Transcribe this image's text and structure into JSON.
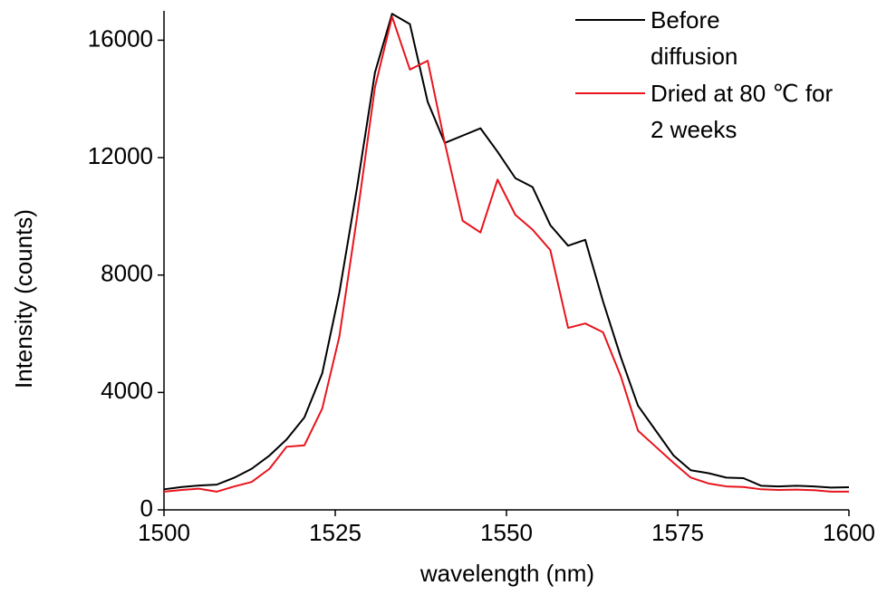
{
  "chart_data": {
    "type": "line",
    "xlabel": "wavelength (nm)",
    "ylabel": "Intensity (counts)",
    "x": [
      1500,
      1502.6,
      1505.1,
      1507.7,
      1510.3,
      1512.8,
      1515.4,
      1517.9,
      1520.5,
      1523.1,
      1525.6,
      1528.2,
      1530.8,
      1533.3,
      1535.9,
      1538.5,
      1541,
      1543.6,
      1546.2,
      1548.7,
      1551.3,
      1553.8,
      1556.4,
      1559,
      1561.5,
      1564.1,
      1566.7,
      1569.2,
      1571.8,
      1574.4,
      1576.9,
      1579.5,
      1582.1,
      1584.6,
      1587.2,
      1589.7,
      1592.3,
      1594.9,
      1597.4,
      1600
    ],
    "series": [
      {
        "name": "Before diffusion",
        "color": "#000000",
        "values": [
          700,
          780,
          830,
          860,
          1100,
          1400,
          1850,
          2400,
          3150,
          4650,
          7400,
          11000,
          14900,
          16900,
          16550,
          13900,
          12500,
          12750,
          13000,
          12200,
          11300,
          11000,
          9700,
          9000,
          9200,
          7100,
          5200,
          3550,
          2700,
          1850,
          1350,
          1250,
          1100,
          1080,
          820,
          800,
          820,
          800,
          760,
          770
        ]
      },
      {
        "name": "Dried at 80 ℃ for 2 weeks",
        "color": "#e8141c",
        "values": [
          620,
          680,
          720,
          620,
          800,
          950,
          1400,
          2150,
          2200,
          3450,
          5900,
          10000,
          14400,
          16800,
          15000,
          15300,
          12500,
          9850,
          9450,
          11250,
          10050,
          9550,
          8850,
          6200,
          6350,
          6050,
          4550,
          2700,
          2150,
          1600,
          1100,
          900,
          800,
          780,
          700,
          680,
          690,
          670,
          620,
          620
        ]
      }
    ],
    "xlim": [
      1500,
      1600
    ],
    "xticks": [
      1500,
      1525,
      1550,
      1575,
      1600
    ],
    "ylim": [
      0,
      17000
    ],
    "yticks": [
      0,
      4000,
      8000,
      12000,
      16000
    ]
  }
}
